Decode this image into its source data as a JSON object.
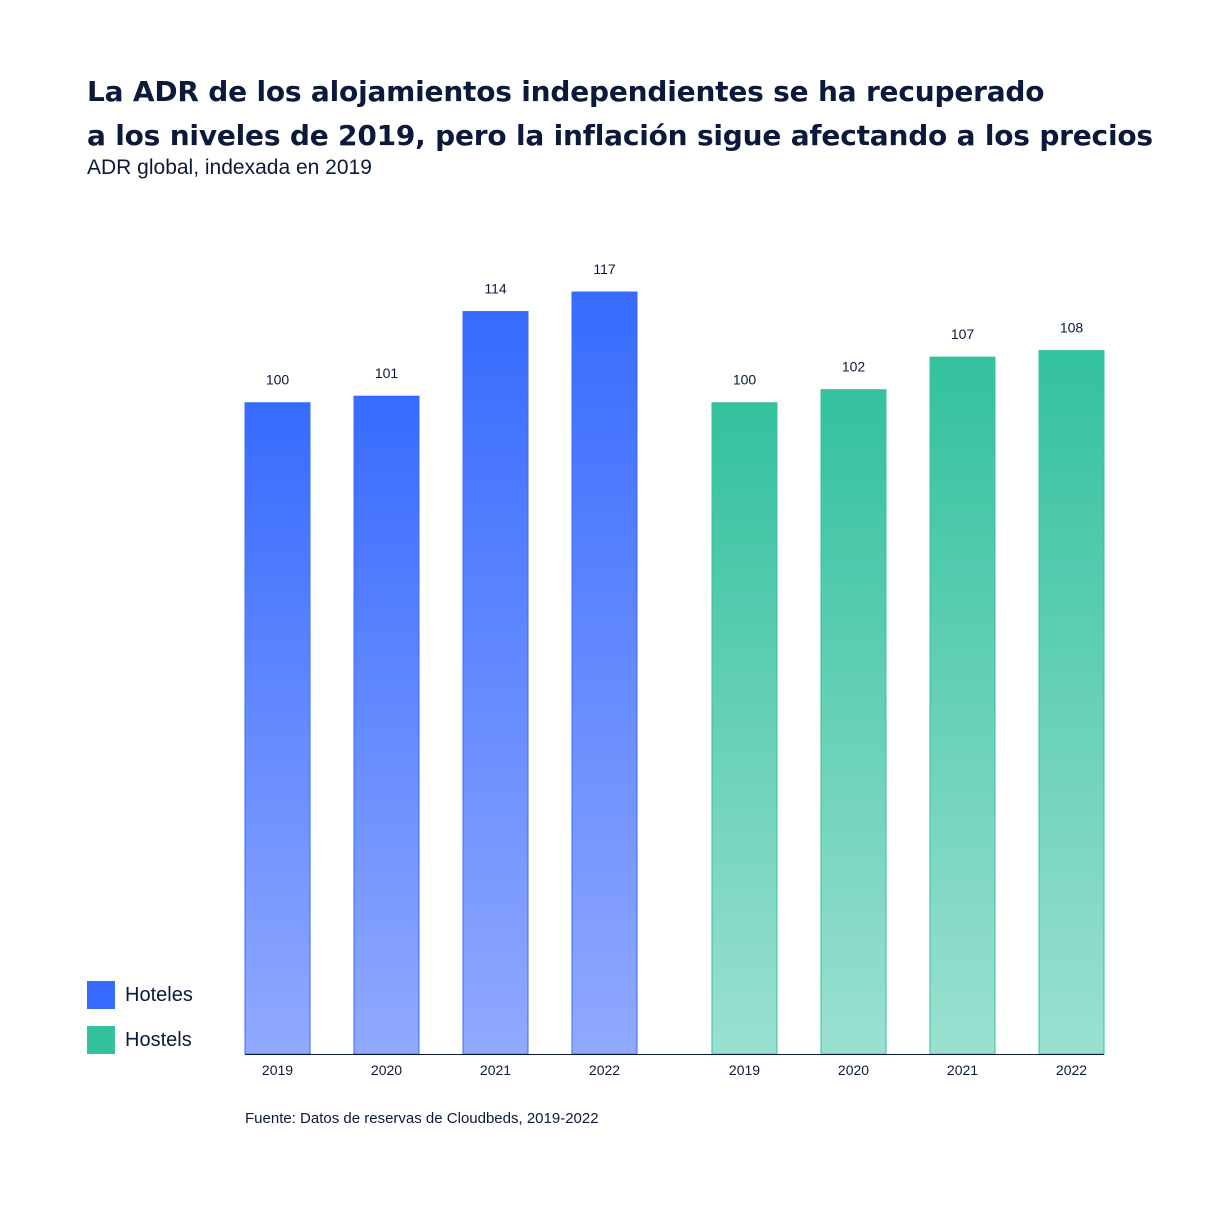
{
  "title_lines": [
    "La ADR de los alojamientos independientes se ha recuperado",
    "a los niveles de 2019, pero la inflación sigue afectando a los precios"
  ],
  "subtitle": "ADR global, indexada en 2019",
  "source": "Fuente: Datos de reservas de Cloudbeds, 2019-2022",
  "colors": {
    "hoteles_top": "#376bfe",
    "hoteles_bottom": "#91a9fe",
    "hostels_top": "#33c19e",
    "hostels_bottom": "#9be0d0",
    "axis": "#0b1a3a",
    "text": "#0b1a3a"
  },
  "legend": [
    {
      "label": "Hoteles",
      "color": "#376bfe"
    },
    {
      "label": "Hostels",
      "color": "#33c19e"
    }
  ],
  "chart_data": {
    "type": "bar",
    "categories": [
      "2019",
      "2020",
      "2021",
      "2022"
    ],
    "series": [
      {
        "name": "Hoteles",
        "values": [
          100,
          101,
          114,
          117
        ]
      },
      {
        "name": "Hostels",
        "values": [
          100,
          102,
          107,
          108
        ]
      }
    ],
    "title": "",
    "xlabel": "",
    "ylabel": "",
    "ylim": [
      0,
      117
    ],
    "grid": false,
    "legend_position": "bottom-left",
    "data_labels": true
  }
}
